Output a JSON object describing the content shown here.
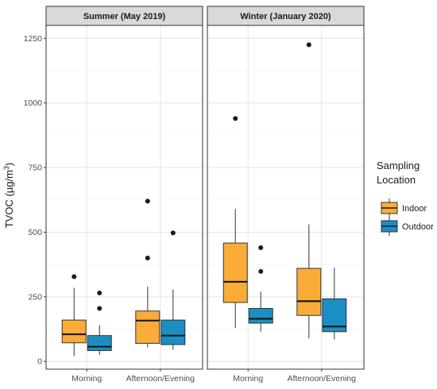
{
  "chart_data": {
    "type": "boxplot",
    "ylabel": "TVOC (µg/m",
    "ylabel_sup": "3",
    "ylabel_close": ")",
    "ylim": [
      -30,
      1300
    ],
    "yticks": [
      0,
      250,
      500,
      750,
      1000,
      1250
    ],
    "grid": true,
    "categories": [
      "Morning",
      "Afternoon/Evening"
    ],
    "legend": {
      "title_line1": "Sampling",
      "title_line2": "Location",
      "position": "right",
      "items": [
        {
          "name": "Indoor",
          "color": "#F9AC37"
        },
        {
          "name": "Outdoor",
          "color": "#1B8FC4"
        }
      ]
    },
    "panels": [
      {
        "title": "Summer (May 2019)",
        "boxes": [
          {
            "category": "Morning",
            "group": "Indoor",
            "min": 20,
            "q1": 72,
            "median": 105,
            "q3": 160,
            "max": 285,
            "outliers": [
              328
            ]
          },
          {
            "category": "Morning",
            "group": "Outdoor",
            "min": 25,
            "q1": 42,
            "median": 57,
            "q3": 100,
            "max": 140,
            "outliers": [
              205,
              265
            ]
          },
          {
            "category": "Afternoon/Evening",
            "group": "Indoor",
            "min": 55,
            "q1": 70,
            "median": 158,
            "q3": 195,
            "max": 290,
            "outliers": [
              400,
              620
            ]
          },
          {
            "category": "Afternoon/Evening",
            "group": "Outdoor",
            "min": 45,
            "q1": 65,
            "median": 100,
            "q3": 160,
            "max": 278,
            "outliers": [
              497
            ]
          }
        ]
      },
      {
        "title": "Winter (January 2020)",
        "boxes": [
          {
            "category": "Morning",
            "group": "Indoor",
            "min": 130,
            "q1": 228,
            "median": 308,
            "q3": 458,
            "max": 590,
            "outliers": [
              940
            ]
          },
          {
            "category": "Morning",
            "group": "Outdoor",
            "min": 115,
            "q1": 148,
            "median": 165,
            "q3": 205,
            "max": 270,
            "outliers": [
              348,
              440
            ]
          },
          {
            "category": "Afternoon/Evening",
            "group": "Indoor",
            "min": 90,
            "q1": 178,
            "median": 233,
            "q3": 360,
            "max": 530,
            "outliers": [
              1225
            ]
          },
          {
            "category": "Afternoon/Evening",
            "group": "Outdoor",
            "min": 85,
            "q1": 115,
            "median": 135,
            "q3": 242,
            "max": 362,
            "outliers": []
          }
        ]
      }
    ]
  }
}
